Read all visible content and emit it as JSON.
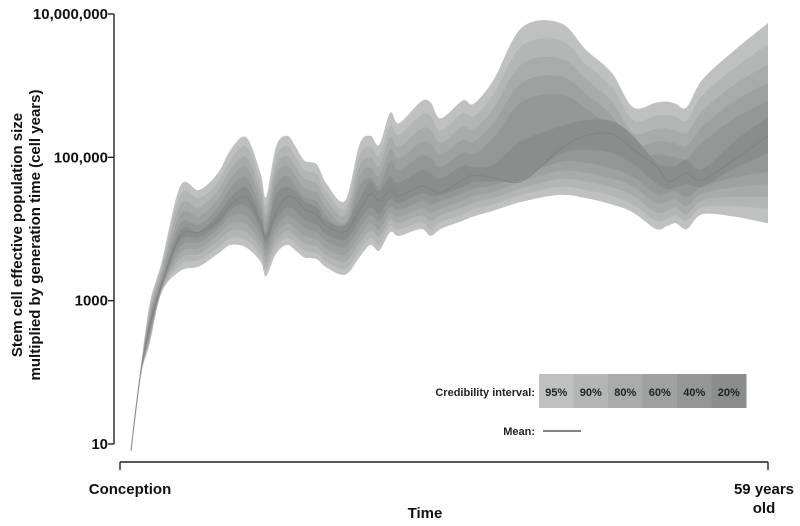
{
  "chart_data": {
    "type": "area",
    "title": "",
    "xlabel": "Time",
    "ylabel_lines": [
      "Stem cell effective population size",
      "multiplied by generation time (cell years)"
    ],
    "y_scale": "log",
    "ylim": [
      10,
      10000000
    ],
    "xlim": [
      0,
      59
    ],
    "y_ticks": [
      {
        "value": 10,
        "label": "10"
      },
      {
        "value": 1000,
        "label": "1000"
      },
      {
        "value": 100000,
        "label": "100,000"
      },
      {
        "value": 10000000,
        "label": "10,000,000"
      }
    ],
    "x_ticks": [
      {
        "value": 0,
        "lines": [
          "Conception"
        ]
      },
      {
        "value": 59,
        "lines": [
          "59 years",
          "old"
        ]
      }
    ],
    "x": [
      1.0,
      1.8,
      2.7,
      3.8,
      5.5,
      7.2,
      8.9,
      10.1,
      11.5,
      12.8,
      13.3,
      14.2,
      15.2,
      16.0,
      16.8,
      17.9,
      18.8,
      20.5,
      21.8,
      22.8,
      23.6,
      24.6,
      25.4,
      27.4,
      28.3,
      29.2,
      31.2,
      32.2,
      34.0,
      36.6,
      40.1,
      42.4,
      44.8,
      46.7,
      48.8,
      49.8,
      50.6,
      51.6,
      53.0,
      55.8,
      59.0
    ],
    "mean": [
      8,
      80,
      450,
      1700,
      8000,
      9000,
      13000,
      22000,
      28000,
      12000,
      7500,
      17000,
      28000,
      26000,
      19000,
      16000,
      11000,
      9200,
      18000,
      31000,
      25000,
      35000,
      29000,
      40000,
      36000,
      32000,
      48000,
      56000,
      52000,
      47000,
      130000,
      200000,
      210000,
      130000,
      75000,
      48000,
      50000,
      60000,
      48000,
      90000,
      200000
    ],
    "series": [
      {
        "name": "95%",
        "lower": [
          8,
          80,
          250,
          1300,
          2600,
          3000,
          4500,
          6000,
          5500,
          3500,
          2200,
          4500,
          6000,
          5000,
          4000,
          3800,
          2900,
          2300,
          4000,
          6000,
          5000,
          9000,
          8000,
          10000,
          8000,
          10000,
          13000,
          15000,
          18000,
          24000,
          30000,
          27000,
          22000,
          17000,
          10000,
          11000,
          12000,
          10000,
          16000,
          15000,
          12000
        ],
        "upper": [
          8,
          90,
          900,
          3500,
          40000,
          35000,
          60000,
          130000,
          190000,
          60000,
          28000,
          140000,
          200000,
          140000,
          90000,
          80000,
          43000,
          25000,
          150000,
          200000,
          150000,
          420000,
          300000,
          600000,
          580000,
          350000,
          620000,
          560000,
          1200000,
          6500000,
          7500000,
          3200000,
          1500000,
          500000,
          580000,
          600000,
          560000,
          500000,
          1200000,
          3000000,
          7500000
        ],
        "color": "#bfc1c1"
      },
      {
        "name": "90%",
        "lower": [
          8,
          80,
          270,
          1350,
          3200,
          3700,
          5500,
          7500,
          7000,
          4300,
          2700,
          5500,
          7500,
          6200,
          5000,
          4600,
          3500,
          2800,
          5000,
          7500,
          6200,
          11000,
          9800,
          12500,
          10000,
          12500,
          16000,
          19000,
          22000,
          30000,
          39000,
          35000,
          29000,
          22000,
          13000,
          14000,
          15500,
          13000,
          20000,
          21000,
          19000
        ],
        "upper": [
          8,
          88,
          800,
          3100,
          30000,
          27000,
          45000,
          95000,
          140000,
          45000,
          21000,
          100000,
          145000,
          100000,
          66000,
          58000,
          33000,
          19500,
          105000,
          140000,
          105000,
          280000,
          205000,
          390000,
          375000,
          235000,
          410000,
          375000,
          760000,
          3600000,
          4300000,
          2000000,
          950000,
          330000,
          380000,
          390000,
          370000,
          330000,
          730000,
          1700000,
          3800000
        ],
        "color": "#b4b6b6"
      },
      {
        "name": "80%",
        "lower": [
          8,
          80,
          290,
          1400,
          3900,
          4500,
          6800,
          9400,
          9000,
          5300,
          3300,
          6800,
          9400,
          7900,
          6300,
          5700,
          4300,
          3500,
          6300,
          9500,
          7800,
          13500,
          12000,
          15500,
          12800,
          15500,
          20000,
          23500,
          27000,
          37000,
          50000,
          46000,
          38000,
          29000,
          17000,
          18000,
          20000,
          16000,
          25000,
          28000,
          28000
        ],
        "upper": [
          8,
          86,
          700,
          2700,
          22000,
          20000,
          34000,
          70000,
          100000,
          33000,
          16000,
          75000,
          105000,
          74000,
          50000,
          43000,
          25500,
          15500,
          75000,
          100000,
          75000,
          190000,
          140000,
          250000,
          240000,
          160000,
          270000,
          250000,
          480000,
          2000000,
          2400000,
          1250000,
          600000,
          220000,
          250000,
          255000,
          240000,
          220000,
          440000,
          1000000,
          2000000
        ],
        "color": "#a9abab"
      },
      {
        "name": "60%",
        "lower": [
          8,
          80,
          310,
          1450,
          4700,
          5400,
          8200,
          12000,
          11500,
          6600,
          4100,
          8400,
          11800,
          10100,
          8000,
          7100,
          5300,
          4400,
          8000,
          12000,
          9900,
          16500,
          14800,
          19300,
          16600,
          19300,
          25000,
          29000,
          33000,
          46000,
          65000,
          61000,
          51000,
          39000,
          23000,
          24000,
          26000,
          21000,
          31000,
          38000,
          42000
        ],
        "upper": [
          8,
          84,
          620,
          2350,
          16000,
          15000,
          26000,
          52000,
          73000,
          25000,
          12300,
          56000,
          76000,
          54000,
          37000,
          32000,
          19500,
          12300,
          55000,
          72000,
          55000,
          130000,
          97000,
          162000,
          153000,
          108000,
          177000,
          165000,
          300000,
          1100000,
          1350000,
          780000,
          380000,
          150000,
          165000,
          165000,
          155000,
          145000,
          265000,
          590000,
          1100000
        ],
        "color": "#9fa1a1"
      },
      {
        "name": "40%",
        "lower": [
          8,
          80,
          330,
          1500,
          5700,
          6500,
          9900,
          15200,
          15300,
          8200,
          5100,
          10500,
          15200,
          13300,
          10300,
          9000,
          6700,
          5600,
          10300,
          15600,
          12800,
          20500,
          18400,
          24400,
          21600,
          24400,
          31600,
          36500,
          40700,
          56000,
          86000,
          84000,
          70000,
          53000,
          31000,
          32000,
          34000,
          28000,
          38000,
          52000,
          63000
        ],
        "upper": [
          8,
          82,
          560,
          2050,
          12000,
          11500,
          19800,
          38000,
          52000,
          18900,
          9400,
          41000,
          55000,
          39500,
          27800,
          24300,
          15100,
          9900,
          40000,
          52000,
          40300,
          89000,
          66000,
          105000,
          98000,
          73000,
          116000,
          110000,
          187000,
          600000,
          750000,
          480000,
          240000,
          100000,
          110000,
          105000,
          100000,
          95000,
          160000,
          340000,
          620000
        ],
        "color": "#959797"
      },
      {
        "name": "20%",
        "lower": [
          8,
          80,
          350,
          1550,
          6800,
          7700,
          11300,
          18600,
          21100,
          10000,
          6300,
          13300,
          19800,
          17800,
          13300,
          11400,
          8400,
          7100,
          13200,
          20000,
          16300,
          26000,
          22900,
          31200,
          28300,
          29800,
          38500,
          45100,
          46400,
          49000,
          112000,
          128000,
          115000,
          80000,
          44000,
          36000,
          38000,
          42000,
          39000,
          68000,
          114000
        ],
        "upper": [
          8,
          80,
          500,
          1800,
          9500,
          9200,
          16000,
          28000,
          38000,
          14500,
          8600,
          30000,
          39000,
          33000,
          24000,
          20000,
          13000,
          11500,
          26000,
          47000,
          34000,
          54000,
          44000,
          66000,
          60000,
          50000,
          76000,
          73000,
          80000,
          170000,
          270000,
          330000,
          320000,
          200000,
          86000,
          75000,
          76000,
          92000,
          68000,
          160000,
          370000
        ],
        "color": "#8b8d8d"
      }
    ],
    "legend": {
      "placement": "bottom-right",
      "ci_label": "Credibility interval:",
      "mean_label": "Mean:",
      "mean_color": "#808282",
      "entries": [
        {
          "label": "95%",
          "color": "#bfc1c1"
        },
        {
          "label": "90%",
          "color": "#b4b6b6"
        },
        {
          "label": "80%",
          "color": "#a9abab"
        },
        {
          "label": "60%",
          "color": "#9fa1a1"
        },
        {
          "label": "40%",
          "color": "#959797"
        },
        {
          "label": "20%",
          "color": "#8b8d8d"
        }
      ]
    }
  }
}
